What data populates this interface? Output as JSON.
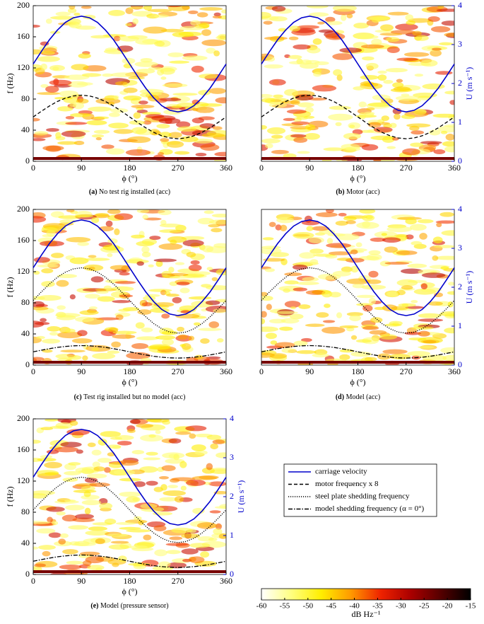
{
  "chart_data": [
    {
      "type": "line",
      "caption_label": "(a)",
      "caption": "No test rig installed (acc)",
      "xlabel": "ϕ (°)",
      "ylabel": "f (Hz)",
      "xlim": [
        0,
        360
      ],
      "xticks": [
        0,
        90,
        180,
        270,
        360
      ],
      "ylim": [
        0,
        200
      ],
      "yticks": [
        0,
        40,
        80,
        120,
        160,
        200
      ],
      "y2lim": [
        0,
        4
      ],
      "x": [
        0,
        15,
        30,
        45,
        60,
        75,
        90,
        105,
        120,
        135,
        150,
        165,
        180,
        195,
        210,
        225,
        240,
        255,
        270,
        285,
        300,
        315,
        330,
        345,
        360
      ],
      "series": [
        {
          "name": "carriage velocity",
          "color": "#0000cc",
          "dash": "solid",
          "axis": "y2",
          "values": [
            2.5,
            2.82,
            3.12,
            3.37,
            3.57,
            3.69,
            3.73,
            3.69,
            3.57,
            3.37,
            3.12,
            2.82,
            2.5,
            2.18,
            1.88,
            1.63,
            1.43,
            1.31,
            1.27,
            1.31,
            1.43,
            1.63,
            1.88,
            2.18,
            2.5
          ]
        },
        {
          "name": "motor frequency x 8",
          "color": "#000000",
          "dash": "dashed",
          "values": [
            57,
            64.2,
            71,
            76.8,
            81.2,
            84,
            85,
            84,
            81.2,
            76.8,
            71,
            64.2,
            57,
            49.8,
            43,
            37.2,
            32.8,
            30,
            29,
            30,
            32.8,
            37.2,
            43,
            49.8,
            57
          ]
        }
      ]
    },
    {
      "type": "line",
      "caption_label": "(b)",
      "caption": "Motor (acc)",
      "xlabel": "ϕ (°)",
      "y2label": "U (m s⁻¹)",
      "xlim": [
        0,
        360
      ],
      "xticks": [
        0,
        90,
        180,
        270,
        360
      ],
      "ylim": [
        0,
        200
      ],
      "y2lim": [
        0,
        4
      ],
      "y2ticks": [
        0,
        1,
        2,
        3,
        4
      ],
      "x": [
        0,
        15,
        30,
        45,
        60,
        75,
        90,
        105,
        120,
        135,
        150,
        165,
        180,
        195,
        210,
        225,
        240,
        255,
        270,
        285,
        300,
        315,
        330,
        345,
        360
      ],
      "series": [
        {
          "name": "carriage velocity",
          "color": "#0000cc",
          "dash": "solid",
          "axis": "y2",
          "values": [
            2.5,
            2.82,
            3.12,
            3.37,
            3.57,
            3.69,
            3.73,
            3.69,
            3.57,
            3.37,
            3.12,
            2.82,
            2.5,
            2.18,
            1.88,
            1.63,
            1.43,
            1.31,
            1.27,
            1.31,
            1.43,
            1.63,
            1.88,
            2.18,
            2.5
          ]
        },
        {
          "name": "motor frequency x 8",
          "color": "#000000",
          "dash": "dashed",
          "values": [
            57,
            64.2,
            71,
            76.8,
            81.2,
            84,
            85,
            84,
            81.2,
            76.8,
            71,
            64.2,
            57,
            49.8,
            43,
            37.2,
            32.8,
            30,
            29,
            30,
            32.8,
            37.2,
            43,
            49.8,
            57
          ]
        }
      ]
    },
    {
      "type": "line",
      "caption_label": "(c)",
      "caption": "Test rig installed but no model (acc)",
      "xlabel": "ϕ (°)",
      "ylabel": "f (Hz)",
      "xlim": [
        0,
        360
      ],
      "xticks": [
        0,
        90,
        180,
        270,
        360
      ],
      "ylim": [
        0,
        200
      ],
      "yticks": [
        0,
        40,
        80,
        120,
        160,
        200
      ],
      "y2lim": [
        0,
        4
      ],
      "x": [
        0,
        15,
        30,
        45,
        60,
        75,
        90,
        105,
        120,
        135,
        150,
        165,
        180,
        195,
        210,
        225,
        240,
        255,
        270,
        285,
        300,
        315,
        330,
        345,
        360
      ],
      "series": [
        {
          "name": "carriage velocity",
          "color": "#0000cc",
          "dash": "solid",
          "axis": "y2",
          "values": [
            2.5,
            2.82,
            3.12,
            3.37,
            3.57,
            3.69,
            3.73,
            3.69,
            3.57,
            3.37,
            3.12,
            2.82,
            2.5,
            2.18,
            1.88,
            1.63,
            1.43,
            1.31,
            1.27,
            1.31,
            1.43,
            1.63,
            1.88,
            2.18,
            2.5
          ]
        },
        {
          "name": "steel plate shedding frequency",
          "color": "#000000",
          "dash": "dotted",
          "values": [
            83,
            93.9,
            104,
            112.7,
            119.4,
            123.6,
            125,
            123.6,
            119.4,
            112.7,
            104,
            93.9,
            83,
            72.1,
            62,
            53.3,
            46.6,
            42.4,
            41,
            42.4,
            46.6,
            53.3,
            62,
            72.1,
            83
          ]
        },
        {
          "name": "model shedding frequency (α = 0°)",
          "color": "#000000",
          "dash": "dashdot",
          "values": [
            17,
            19.1,
            21,
            22.7,
            23.9,
            24.7,
            25,
            24.7,
            23.9,
            22.7,
            21,
            19.1,
            17,
            14.9,
            13,
            11.3,
            10.1,
            9.3,
            9,
            9.3,
            10.1,
            11.3,
            13,
            14.9,
            17
          ]
        }
      ]
    },
    {
      "type": "line",
      "caption_label": "(d)",
      "caption": "Model (acc)",
      "xlabel": "ϕ (°)",
      "y2label": "U (m s⁻¹)",
      "xlim": [
        0,
        360
      ],
      "xticks": [
        0,
        90,
        180,
        270,
        360
      ],
      "ylim": [
        0,
        200
      ],
      "y2lim": [
        0,
        4
      ],
      "y2ticks": [
        0,
        1,
        2,
        3,
        4
      ],
      "x": [
        0,
        15,
        30,
        45,
        60,
        75,
        90,
        105,
        120,
        135,
        150,
        165,
        180,
        195,
        210,
        225,
        240,
        255,
        270,
        285,
        300,
        315,
        330,
        345,
        360
      ],
      "series": [
        {
          "name": "carriage velocity",
          "color": "#0000cc",
          "dash": "solid",
          "axis": "y2",
          "values": [
            2.5,
            2.82,
            3.12,
            3.37,
            3.57,
            3.69,
            3.73,
            3.69,
            3.57,
            3.37,
            3.12,
            2.82,
            2.5,
            2.18,
            1.88,
            1.63,
            1.43,
            1.31,
            1.27,
            1.31,
            1.43,
            1.63,
            1.88,
            2.18,
            2.5
          ]
        },
        {
          "name": "steel plate shedding frequency",
          "color": "#000000",
          "dash": "dotted",
          "values": [
            83,
            93.9,
            104,
            112.7,
            119.4,
            123.6,
            125,
            123.6,
            119.4,
            112.7,
            104,
            93.9,
            83,
            72.1,
            62,
            53.3,
            46.6,
            42.4,
            41,
            42.4,
            46.6,
            53.3,
            62,
            72.1,
            83
          ]
        },
        {
          "name": "model shedding frequency (α = 0°)",
          "color": "#000000",
          "dash": "dashdot",
          "values": [
            17,
            19.1,
            21,
            22.7,
            23.9,
            24.7,
            25,
            24.7,
            23.9,
            22.7,
            21,
            19.1,
            17,
            14.9,
            13,
            11.3,
            10.1,
            9.3,
            9,
            9.3,
            10.1,
            11.3,
            13,
            14.9,
            17
          ]
        }
      ]
    },
    {
      "type": "line",
      "caption_label": "(e)",
      "caption": "Model (pressure sensor)",
      "xlabel": "ϕ (°)",
      "ylabel": "f (Hz)",
      "y2label": "U (m s⁻¹)",
      "xlim": [
        0,
        360
      ],
      "xticks": [
        0,
        90,
        180,
        270,
        360
      ],
      "ylim": [
        0,
        200
      ],
      "yticks": [
        0,
        40,
        80,
        120,
        160,
        200
      ],
      "y2lim": [
        0,
        4
      ],
      "y2ticks": [
        0,
        1,
        2,
        3,
        4
      ],
      "x": [
        0,
        15,
        30,
        45,
        60,
        75,
        90,
        105,
        120,
        135,
        150,
        165,
        180,
        195,
        210,
        225,
        240,
        255,
        270,
        285,
        300,
        315,
        330,
        345,
        360
      ],
      "series": [
        {
          "name": "carriage velocity",
          "color": "#0000cc",
          "dash": "solid",
          "axis": "y2",
          "values": [
            2.5,
            2.82,
            3.12,
            3.37,
            3.57,
            3.69,
            3.73,
            3.69,
            3.57,
            3.37,
            3.12,
            2.82,
            2.5,
            2.18,
            1.88,
            1.63,
            1.43,
            1.31,
            1.27,
            1.31,
            1.43,
            1.63,
            1.88,
            2.18,
            2.5
          ]
        },
        {
          "name": "steel plate shedding frequency",
          "color": "#000000",
          "dash": "dotted",
          "values": [
            83,
            93.9,
            104,
            112.7,
            119.4,
            123.6,
            125,
            123.6,
            119.4,
            112.7,
            104,
            93.9,
            83,
            72.1,
            62,
            53.3,
            46.6,
            42.4,
            41,
            42.4,
            46.6,
            53.3,
            62,
            72.1,
            83
          ]
        },
        {
          "name": "model shedding frequency (α = 0°)",
          "color": "#000000",
          "dash": "dashdot",
          "values": [
            17,
            19.1,
            21,
            22.7,
            23.9,
            24.7,
            25,
            24.7,
            23.9,
            22.7,
            21,
            19.1,
            17,
            14.9,
            13,
            11.3,
            10.1,
            9.3,
            9,
            9.3,
            10.1,
            11.3,
            13,
            14.9,
            17
          ]
        }
      ]
    }
  ],
  "legend": {
    "entries": [
      {
        "name": "carriage velocity",
        "color": "#0000cc",
        "dash": "solid"
      },
      {
        "name": "motor frequency x 8",
        "color": "#000000",
        "dash": "dashed"
      },
      {
        "name": "steel plate shedding frequency",
        "color": "#000000",
        "dash": "dotted"
      },
      {
        "name": "model shedding frequency (α = 0°)",
        "color": "#000000",
        "dash": "dashdot"
      }
    ]
  },
  "colorbar": {
    "label": "dB Hz⁻¹",
    "lim": [
      -60,
      -15
    ],
    "ticks": [
      -60,
      -55,
      -50,
      -45,
      -40,
      -35,
      -30,
      -25,
      -20,
      -15
    ],
    "colors": [
      "#ffffff",
      "#ffff80",
      "#ffee00",
      "#ff9900",
      "#ee2200",
      "#aa0000",
      "#550000",
      "#000000"
    ]
  }
}
